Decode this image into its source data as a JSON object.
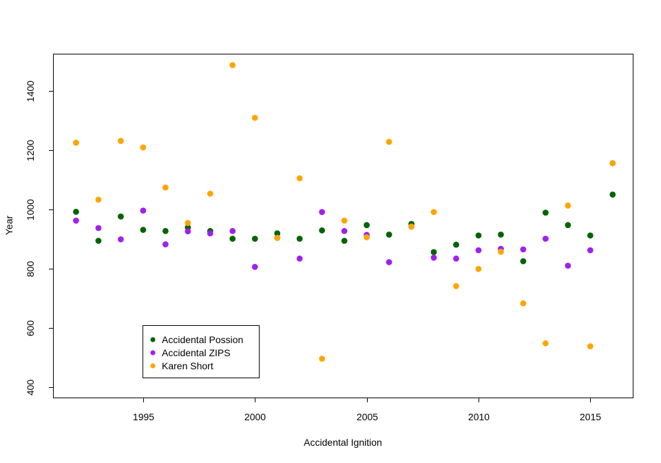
{
  "chart_data": {
    "type": "scatter",
    "title": "",
    "xlabel": "Accidental Ignition",
    "ylabel": "Year",
    "xlim": [
      1991.0,
      2016.9
    ],
    "ylim": [
      366,
      1524
    ],
    "xticks": [
      1995,
      2000,
      2005,
      2010,
      2015
    ],
    "yticks": [
      400,
      600,
      800,
      1000,
      1200,
      1400
    ],
    "grid": false,
    "legend_position": "bottom-left",
    "x": [
      1992,
      1993,
      1994,
      1995,
      1996,
      1997,
      1998,
      1999,
      2000,
      2001,
      2002,
      2003,
      2004,
      2005,
      2006,
      2007,
      2008,
      2009,
      2010,
      2011,
      2012,
      2013,
      2014,
      2015,
      2016
    ],
    "series": [
      {
        "name": "Accidental Possion",
        "color": "#006400",
        "values": [
          993,
          895,
          977,
          932,
          928,
          940,
          928,
          902,
          902,
          920,
          902,
          930,
          895,
          948,
          916,
          952,
          857,
          882,
          913,
          916,
          826,
          990,
          948,
          913,
          1051
        ]
      },
      {
        "name": "Accidental ZIPS",
        "color": "#A020F0",
        "values": [
          963,
          938,
          900,
          997,
          883,
          927,
          920,
          928,
          807,
          905,
          835,
          992,
          928,
          915,
          823,
          943,
          838,
          835,
          863,
          868,
          866,
          902,
          811,
          863,
          1157
        ]
      },
      {
        "name": "Karen Short",
        "color": "#FFA500",
        "values": [
          1226,
          1034,
          1232,
          1210,
          1075,
          955,
          1054,
          1488,
          1310,
          905,
          1106,
          497,
          963,
          907,
          1229,
          943,
          992,
          742,
          800,
          858,
          684,
          549,
          1014,
          539,
          1157
        ]
      }
    ]
  }
}
